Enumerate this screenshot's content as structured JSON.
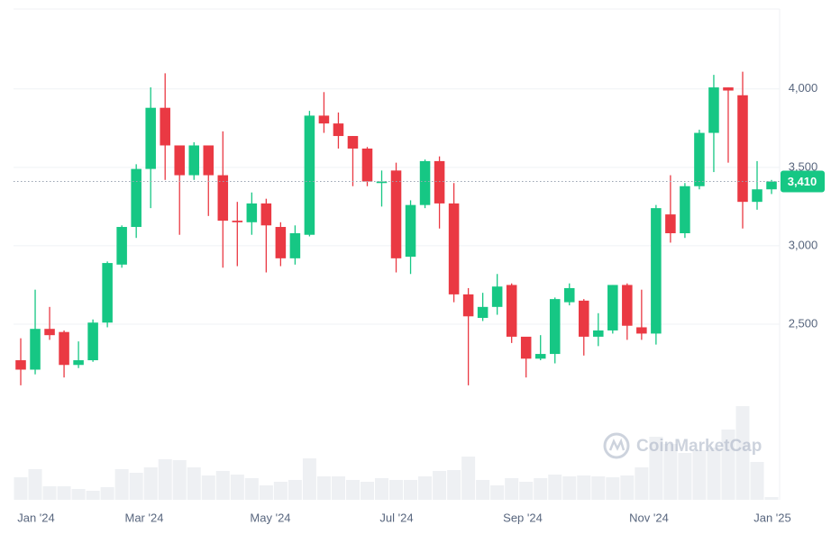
{
  "chart_data": {
    "type": "candlestick",
    "x": [
      0,
      1,
      2,
      3,
      4,
      5,
      6,
      7,
      8,
      9,
      10,
      11,
      12,
      13,
      14,
      15,
      16,
      17,
      18,
      19,
      20,
      21,
      22,
      23,
      24,
      25,
      26,
      27,
      28,
      29,
      30,
      31,
      32,
      33,
      34,
      35,
      36,
      37,
      38,
      39,
      40,
      41,
      42,
      43,
      44,
      45,
      46,
      47,
      48,
      49,
      50,
      51,
      52
    ],
    "open": [
      2270,
      2210,
      2470,
      2450,
      2240,
      2270,
      2510,
      2880,
      3120,
      3490,
      3880,
      3640,
      3450,
      3640,
      3450,
      3160,
      3150,
      3270,
      3120,
      2920,
      3070,
      3830,
      3780,
      3700,
      3620,
      3400,
      3480,
      2930,
      3260,
      3540,
      3270,
      2690,
      2540,
      2610,
      2750,
      2420,
      2280,
      2310,
      2640,
      2650,
      2420,
      2460,
      2750,
      2480,
      2440,
      3200,
      3080,
      3380,
      3720,
      4010,
      3960,
      3280,
      3360
    ],
    "high": [
      2410,
      2720,
      2610,
      2460,
      2390,
      2530,
      2900,
      3130,
      3520,
      4010,
      4100,
      3640,
      3660,
      3640,
      3730,
      3280,
      3340,
      3300,
      3150,
      3130,
      3860,
      3980,
      3850,
      3700,
      3630,
      3480,
      3530,
      3290,
      3550,
      3570,
      3400,
      2730,
      2700,
      2820,
      2760,
      2410,
      2430,
      2670,
      2760,
      2660,
      2570,
      2750,
      2760,
      2720,
      3260,
      3450,
      3400,
      3740,
      4090,
      4010,
      4110,
      3540,
      3420
    ],
    "low": [
      2110,
      2180,
      2400,
      2160,
      2220,
      2260,
      2480,
      2860,
      3050,
      3240,
      3420,
      3070,
      3420,
      3190,
      2860,
      2870,
      3070,
      2830,
      2870,
      2880,
      3060,
      3720,
      3620,
      3380,
      3380,
      3250,
      2830,
      2820,
      3240,
      3110,
      2640,
      2110,
      2520,
      2560,
      2380,
      2160,
      2270,
      2250,
      2620,
      2300,
      2360,
      2440,
      2400,
      2400,
      2370,
      3020,
      3050,
      3360,
      3470,
      3530,
      3110,
      3230,
      3330
    ],
    "close": [
      2210,
      2470,
      2430,
      2240,
      2270,
      2510,
      2890,
      3120,
      3490,
      3880,
      3640,
      3450,
      3640,
      3450,
      3160,
      3150,
      3270,
      3130,
      2920,
      3080,
      3830,
      3780,
      3700,
      3620,
      3410,
      3410,
      2920,
      3260,
      3540,
      3270,
      2690,
      2550,
      2610,
      2740,
      2420,
      2280,
      2310,
      2660,
      2730,
      2420,
      2460,
      2750,
      2490,
      2440,
      3240,
      3080,
      3380,
      3720,
      4010,
      3990,
      3280,
      3360,
      3410
    ],
    "volume": [
      25,
      34,
      15,
      15,
      12,
      10,
      14,
      34,
      30,
      36,
      45,
      44,
      36,
      27,
      32,
      28,
      24,
      16,
      20,
      22,
      46,
      26,
      26,
      22,
      20,
      24,
      22,
      22,
      26,
      32,
      33,
      48,
      22,
      16,
      24,
      20,
      24,
      28,
      26,
      27,
      26,
      25,
      27,
      36,
      70,
      62,
      52,
      55,
      58,
      78,
      104,
      42,
      3
    ],
    "up_color": "#16c784",
    "down_color": "#ea3943",
    "volume_color": "#eef0f3",
    "xlim": [
      -0.5,
      52.56
    ],
    "xticks": [
      {
        "value": 1.06,
        "label": "Jan '24"
      },
      {
        "value": 8.55,
        "label": "Mar '24"
      },
      {
        "value": 17.29,
        "label": "May '24"
      },
      {
        "value": 26.03,
        "label": "Jul '24"
      },
      {
        "value": 34.77,
        "label": "Sep '24"
      },
      {
        "value": 43.51,
        "label": "Nov '24"
      },
      {
        "value": 52.06,
        "label": "Jan '25"
      }
    ],
    "ylim": [
      1380,
      4510
    ],
    "yticks": [
      {
        "value": 2500,
        "label": "2,500"
      },
      {
        "value": 3000,
        "label": "3,000"
      },
      {
        "value": 3500,
        "label": "3,500"
      },
      {
        "value": 4000,
        "label": "4,000"
      }
    ],
    "grid": true,
    "current_price": {
      "value": 3410,
      "label": "3,410"
    },
    "watermark": "CoinMarketCap"
  }
}
